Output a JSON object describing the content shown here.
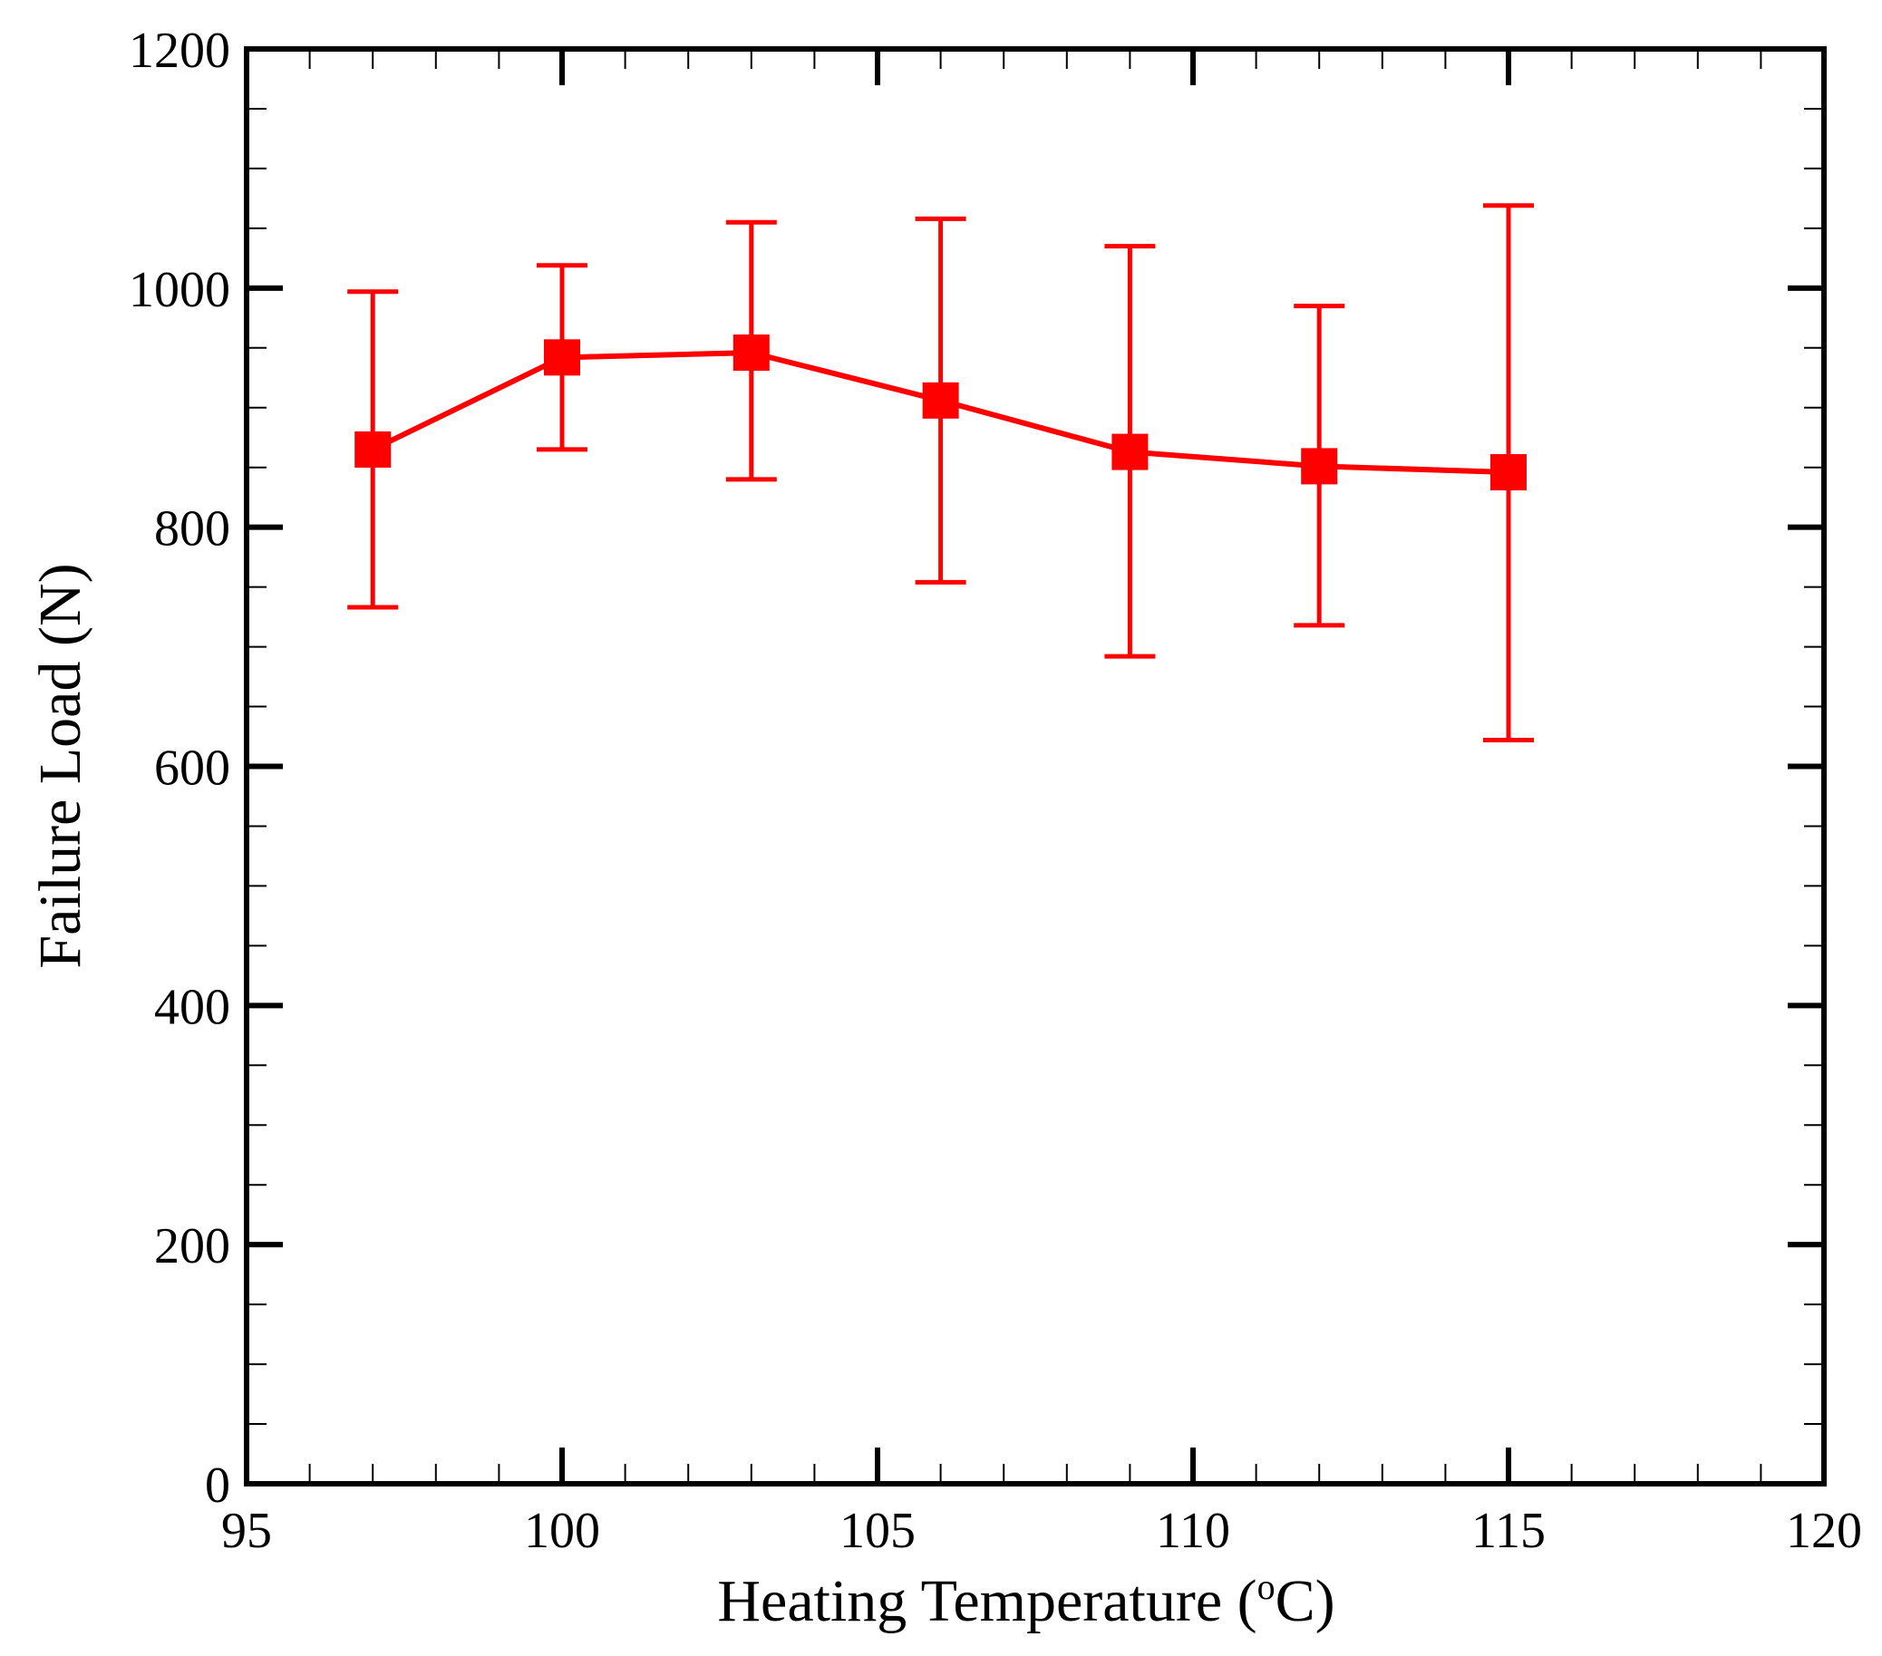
{
  "chart_data": {
    "type": "line",
    "title": "",
    "xlabel": "Heating Temperature (",
    "xlabel_sup": "o",
    "xlabel_end": "C)",
    "ylabel": "Failure Load (N)",
    "xlim": [
      95,
      120
    ],
    "ylim": [
      0,
      1200
    ],
    "x_major_ticks": [
      95,
      100,
      105,
      110,
      115,
      120
    ],
    "x_minor_step": 1,
    "y_major_ticks": [
      0,
      200,
      400,
      600,
      800,
      1000,
      1200
    ],
    "y_minor_step": 50,
    "grid": false,
    "series": [
      {
        "name": "Failure Load",
        "color": "#ff0000",
        "marker": "square",
        "x": [
          97,
          100,
          103,
          106,
          109,
          112,
          115
        ],
        "values": [
          865,
          942,
          946,
          906,
          863,
          851,
          846
        ],
        "error_low": [
          733,
          865,
          840,
          754,
          692,
          718,
          622
        ],
        "error_high": [
          997,
          1019,
          1055,
          1058,
          1035,
          985,
          1069
        ]
      }
    ]
  }
}
